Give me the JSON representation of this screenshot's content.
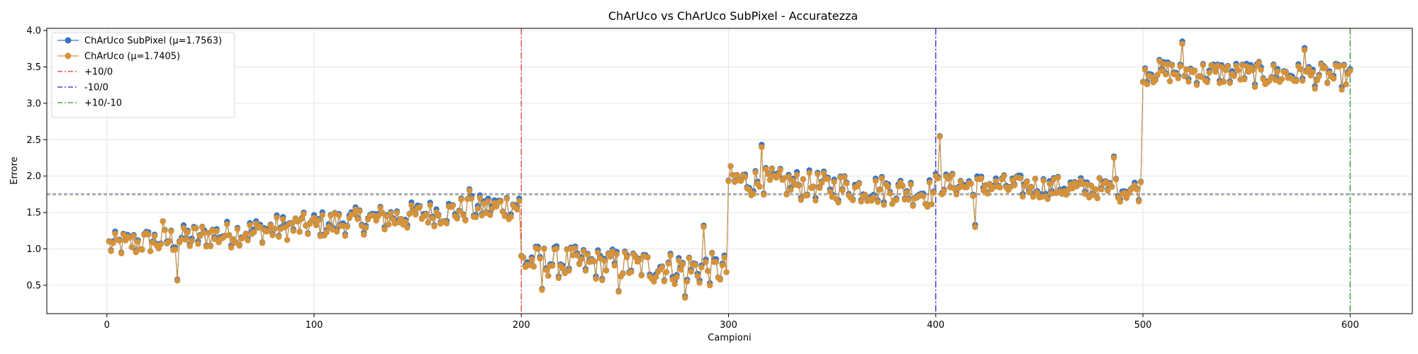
{
  "chart_data": {
    "type": "line",
    "title": "ChArUco vs ChArUco SubPixel - Accuratezza",
    "xlabel": "Campioni",
    "ylabel": "Errore",
    "xlim": [
      -29,
      630
    ],
    "ylim": [
      0.11,
      4.03
    ],
    "xticks": [
      0,
      100,
      200,
      300,
      400,
      500,
      600
    ],
    "yticks": [
      0.5,
      1.0,
      1.5,
      2.0,
      2.5,
      3.0,
      3.5,
      4.0
    ],
    "ytick_labels": [
      "0.5",
      "1.0",
      "1.5",
      "2.0",
      "2.5",
      "3.0",
      "3.5",
      "4.0"
    ],
    "grid": true,
    "legend_position": "top-left",
    "series": [
      {
        "name": "ChArUco SubPixel (μ=1.7563)",
        "color": "#3a75c4",
        "marker": "circle",
        "mean": 1.7563,
        "segments": [
          {
            "x_start": 1,
            "x_end": 199,
            "y_start": 1.05,
            "y_end": 1.62,
            "amplitude": 0.18
          },
          {
            "x_start": 200,
            "x_end": 299,
            "y_start": 0.85,
            "y_end": 0.72,
            "amplitude": 0.22
          },
          {
            "x_start": 300,
            "x_end": 399,
            "y_start": 1.95,
            "y_end": 1.78,
            "amplitude": 0.2
          },
          {
            "x_start": 400,
            "x_end": 499,
            "y_start": 1.9,
            "y_end": 1.82,
            "amplitude": 0.15
          },
          {
            "x_start": 500,
            "x_end": 600,
            "y_start": 3.45,
            "y_end": 3.38,
            "amplitude": 0.16
          }
        ],
        "peaks": [
          {
            "x": 27,
            "y": 1.38
          },
          {
            "x": 34,
            "y": 0.58
          },
          {
            "x": 82,
            "y": 1.46
          },
          {
            "x": 175,
            "y": 1.82
          },
          {
            "x": 210,
            "y": 0.45
          },
          {
            "x": 247,
            "y": 0.42
          },
          {
            "x": 279,
            "y": 0.35
          },
          {
            "x": 288,
            "y": 1.32
          },
          {
            "x": 316,
            "y": 2.43
          },
          {
            "x": 402,
            "y": 2.55
          },
          {
            "x": 419,
            "y": 1.33
          },
          {
            "x": 486,
            "y": 2.27
          },
          {
            "x": 519,
            "y": 3.85
          },
          {
            "x": 578,
            "y": 3.76
          }
        ]
      },
      {
        "name": "ChArUco (μ=1.7405)",
        "color": "#d4923a",
        "marker": "circle",
        "mean": 1.7405,
        "offset_from_subpixel": -0.02
      }
    ],
    "vlines": [
      {
        "x": 200,
        "label": "+10/0",
        "color": "#e8382c",
        "style": "dashdot"
      },
      {
        "x": 400,
        "label": "-10/0",
        "color": "#2424d8",
        "style": "dashdot"
      },
      {
        "x": 600,
        "label": "+10/-10",
        "color": "#2a9a2a",
        "style": "dashdot"
      }
    ]
  }
}
